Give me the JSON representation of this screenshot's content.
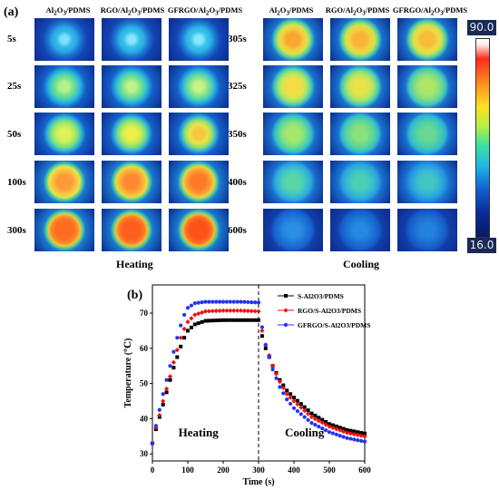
{
  "panel_a": {
    "label": "(a)",
    "heating": {
      "columns": [
        "Al2O3/PDMS",
        "RGO/Al2O3/PDMS",
        "GFRGO/Al2O3/PDMS"
      ],
      "rows": [
        "5s",
        "25s",
        "50s",
        "100s",
        "300s"
      ],
      "label": "Heating"
    },
    "cooling": {
      "columns": [
        "Al2O3/PDMS",
        "RGO/Al2O3/PDMS",
        "GFRGO/Al2O3/PDMS"
      ],
      "rows": [
        "305s",
        "325s",
        "350s",
        "400s",
        "600s"
      ],
      "label": "Cooling"
    },
    "colorbar": {
      "max": "90.0",
      "min": "16.0"
    }
  },
  "panel_b": {
    "label": "(b)"
  },
  "chart_data": {
    "type": "scatter",
    "xlabel": "Time (s)",
    "ylabel": "Temperature (℃)",
    "xlim": [
      0,
      600
    ],
    "ylim": [
      28,
      78
    ],
    "xticks": [
      0,
      100,
      200,
      300,
      400,
      500,
      600
    ],
    "yticks": [
      30,
      40,
      50,
      60,
      70
    ],
    "legend_position": "top-right",
    "annotations": [
      "Heating",
      "Cooling"
    ],
    "divider_x": 300,
    "series": [
      {
        "name": "S-Al2O3/PDMS",
        "color": "#000000",
        "marker": "square",
        "points": [
          [
            0,
            33
          ],
          [
            10,
            37
          ],
          [
            20,
            40.5
          ],
          [
            30,
            44
          ],
          [
            40,
            47.5
          ],
          [
            50,
            51
          ],
          [
            60,
            54.5
          ],
          [
            70,
            57.5
          ],
          [
            80,
            60.5
          ],
          [
            90,
            63
          ],
          [
            100,
            65
          ],
          [
            120,
            66.8
          ],
          [
            150,
            67.8
          ],
          [
            200,
            68
          ],
          [
            250,
            68
          ],
          [
            300,
            68
          ],
          [
            310,
            63.5
          ],
          [
            320,
            60
          ],
          [
            340,
            55
          ],
          [
            360,
            51
          ],
          [
            380,
            48
          ],
          [
            400,
            46
          ],
          [
            450,
            41.5
          ],
          [
            500,
            38.5
          ],
          [
            550,
            36.8
          ],
          [
            600,
            35.8
          ]
        ]
      },
      {
        "name": "RGO/S-Al2O3/PDMS",
        "color": "#ee1111",
        "marker": "diamond",
        "points": [
          [
            0,
            33
          ],
          [
            10,
            37.5
          ],
          [
            20,
            41
          ],
          [
            30,
            45
          ],
          [
            40,
            48.5
          ],
          [
            50,
            52
          ],
          [
            60,
            56
          ],
          [
            70,
            59.5
          ],
          [
            80,
            63
          ],
          [
            90,
            65.5
          ],
          [
            100,
            67.5
          ],
          [
            120,
            69.5
          ],
          [
            150,
            70.5
          ],
          [
            200,
            70.7
          ],
          [
            250,
            70.7
          ],
          [
            300,
            70.5
          ],
          [
            310,
            65
          ],
          [
            320,
            61
          ],
          [
            340,
            55
          ],
          [
            360,
            50.5
          ],
          [
            380,
            47
          ],
          [
            400,
            45
          ],
          [
            450,
            40.5
          ],
          [
            500,
            37.8
          ],
          [
            550,
            36
          ],
          [
            600,
            35
          ]
        ]
      },
      {
        "name": "GFRGO/S-Al2O3/PDMS",
        "color": "#2233ee",
        "marker": "circle",
        "points": [
          [
            0,
            33
          ],
          [
            10,
            38
          ],
          [
            20,
            42.5
          ],
          [
            30,
            47
          ],
          [
            40,
            51
          ],
          [
            50,
            55
          ],
          [
            60,
            59
          ],
          [
            70,
            63
          ],
          [
            80,
            66.5
          ],
          [
            90,
            69.5
          ],
          [
            100,
            71.5
          ],
          [
            120,
            72.8
          ],
          [
            150,
            73.2
          ],
          [
            200,
            73.2
          ],
          [
            250,
            73.2
          ],
          [
            300,
            73
          ],
          [
            310,
            66
          ],
          [
            320,
            61
          ],
          [
            340,
            54
          ],
          [
            360,
            49
          ],
          [
            380,
            45.5
          ],
          [
            400,
            43
          ],
          [
            450,
            38.8
          ],
          [
            500,
            36.2
          ],
          [
            550,
            34.5
          ],
          [
            600,
            33.5
          ]
        ]
      }
    ]
  }
}
